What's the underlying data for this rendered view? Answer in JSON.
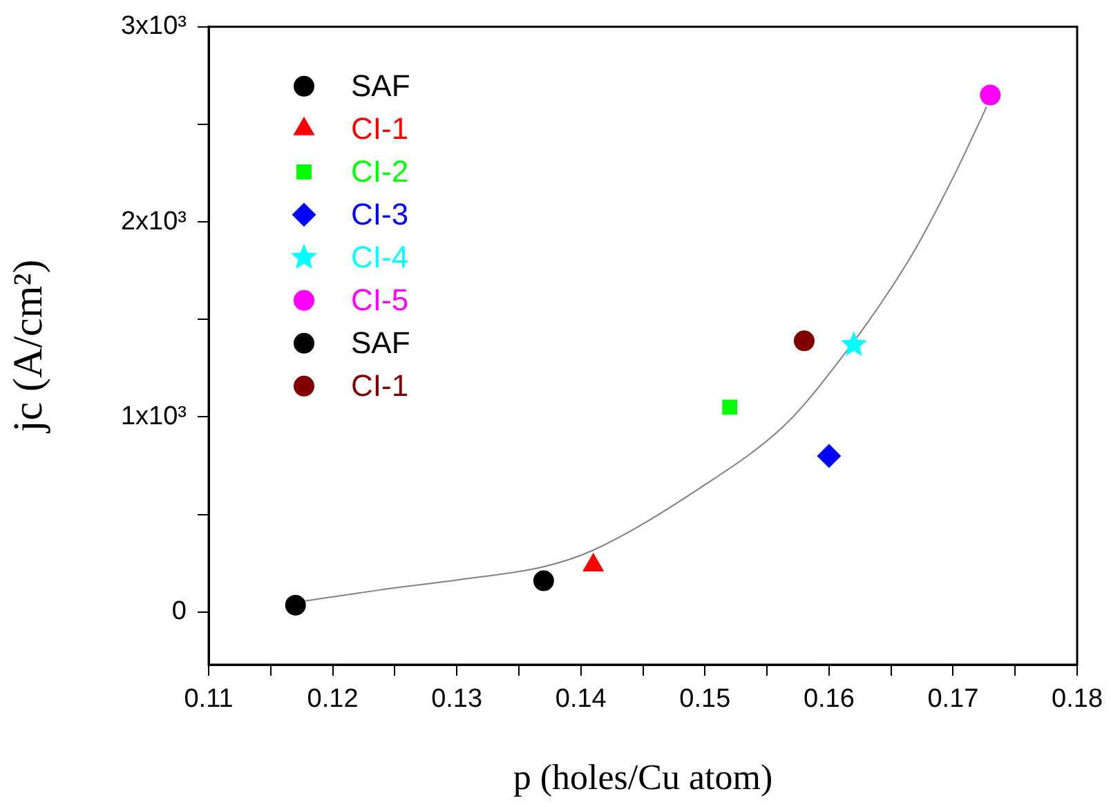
{
  "chart_data": {
    "type": "scatter",
    "xlabel": "p (holes/Cu atom)",
    "ylabel": "jc (A/cm²)",
    "xlim": [
      0.11,
      0.18
    ],
    "xticks": [
      0.11,
      {
        "value": 0.115,
        "label": null
      },
      0.12,
      {
        "value": 0.125,
        "label": null
      },
      0.13,
      {
        "value": 0.135,
        "label": null
      },
      0.14,
      {
        "value": 0.145,
        "label": null
      },
      0.15,
      {
        "value": 0.155,
        "label": null
      },
      0.16,
      {
        "value": 0.165,
        "label": null
      },
      0.17,
      {
        "value": 0.175,
        "label": null
      },
      0.18
    ],
    "ylim": [
      -270,
      3000
    ],
    "yticks": [
      {
        "value": 0,
        "label": "0"
      },
      {
        "value": 500,
        "label": null
      },
      {
        "value": 1000,
        "label": "1x10³"
      },
      {
        "value": 1500,
        "label": null
      },
      {
        "value": 2000,
        "label": "2x10³"
      },
      {
        "value": 2500,
        "label": null
      },
      {
        "value": 3000,
        "label": "3x10³"
      }
    ],
    "grid": false,
    "legend": "top left",
    "series": [
      {
        "name": "SAF",
        "color": "#000000",
        "marker": "circle",
        "x": [
          0.117
        ],
        "values": [
          35
        ]
      },
      {
        "name": "CI-1",
        "color": "#ff0000",
        "marker": "triangle",
        "x": [
          0.141
        ],
        "values": [
          240
        ]
      },
      {
        "name": "CI-2",
        "color": "#00ff00",
        "marker": "square",
        "x": [
          0.152
        ],
        "values": [
          1050
        ]
      },
      {
        "name": "CI-3",
        "color": "#0000ff",
        "marker": "diamond",
        "x": [
          0.16
        ],
        "values": [
          800
        ]
      },
      {
        "name": "CI-4",
        "color": "#00ffff",
        "marker": "star",
        "x": [
          0.162
        ],
        "values": [
          1370
        ]
      },
      {
        "name": "CI-5",
        "color": "#ff00ff",
        "marker": "circle",
        "x": [
          0.173
        ],
        "values": [
          2650
        ]
      },
      {
        "name": "SAF",
        "color": "#000000",
        "marker": "circle",
        "x": [
          0.137
        ],
        "values": [
          160
        ]
      },
      {
        "name": "CI-1",
        "color": "#800000",
        "marker": "circle",
        "x": [
          0.158
        ],
        "values": [
          1390
        ]
      },
      {
        "type": "line",
        "color": "#808080",
        "marker": "none",
        "x": [
          0.1175,
          0.1238,
          0.1307,
          0.137,
          0.141,
          0.1497,
          0.1563,
          0.1595,
          0.1664,
          0.1701,
          0.1727
        ],
        "values": [
          54,
          113,
          170,
          232,
          317,
          640,
          950,
          1180,
          1800,
          2240,
          2590
        ]
      }
    ]
  }
}
